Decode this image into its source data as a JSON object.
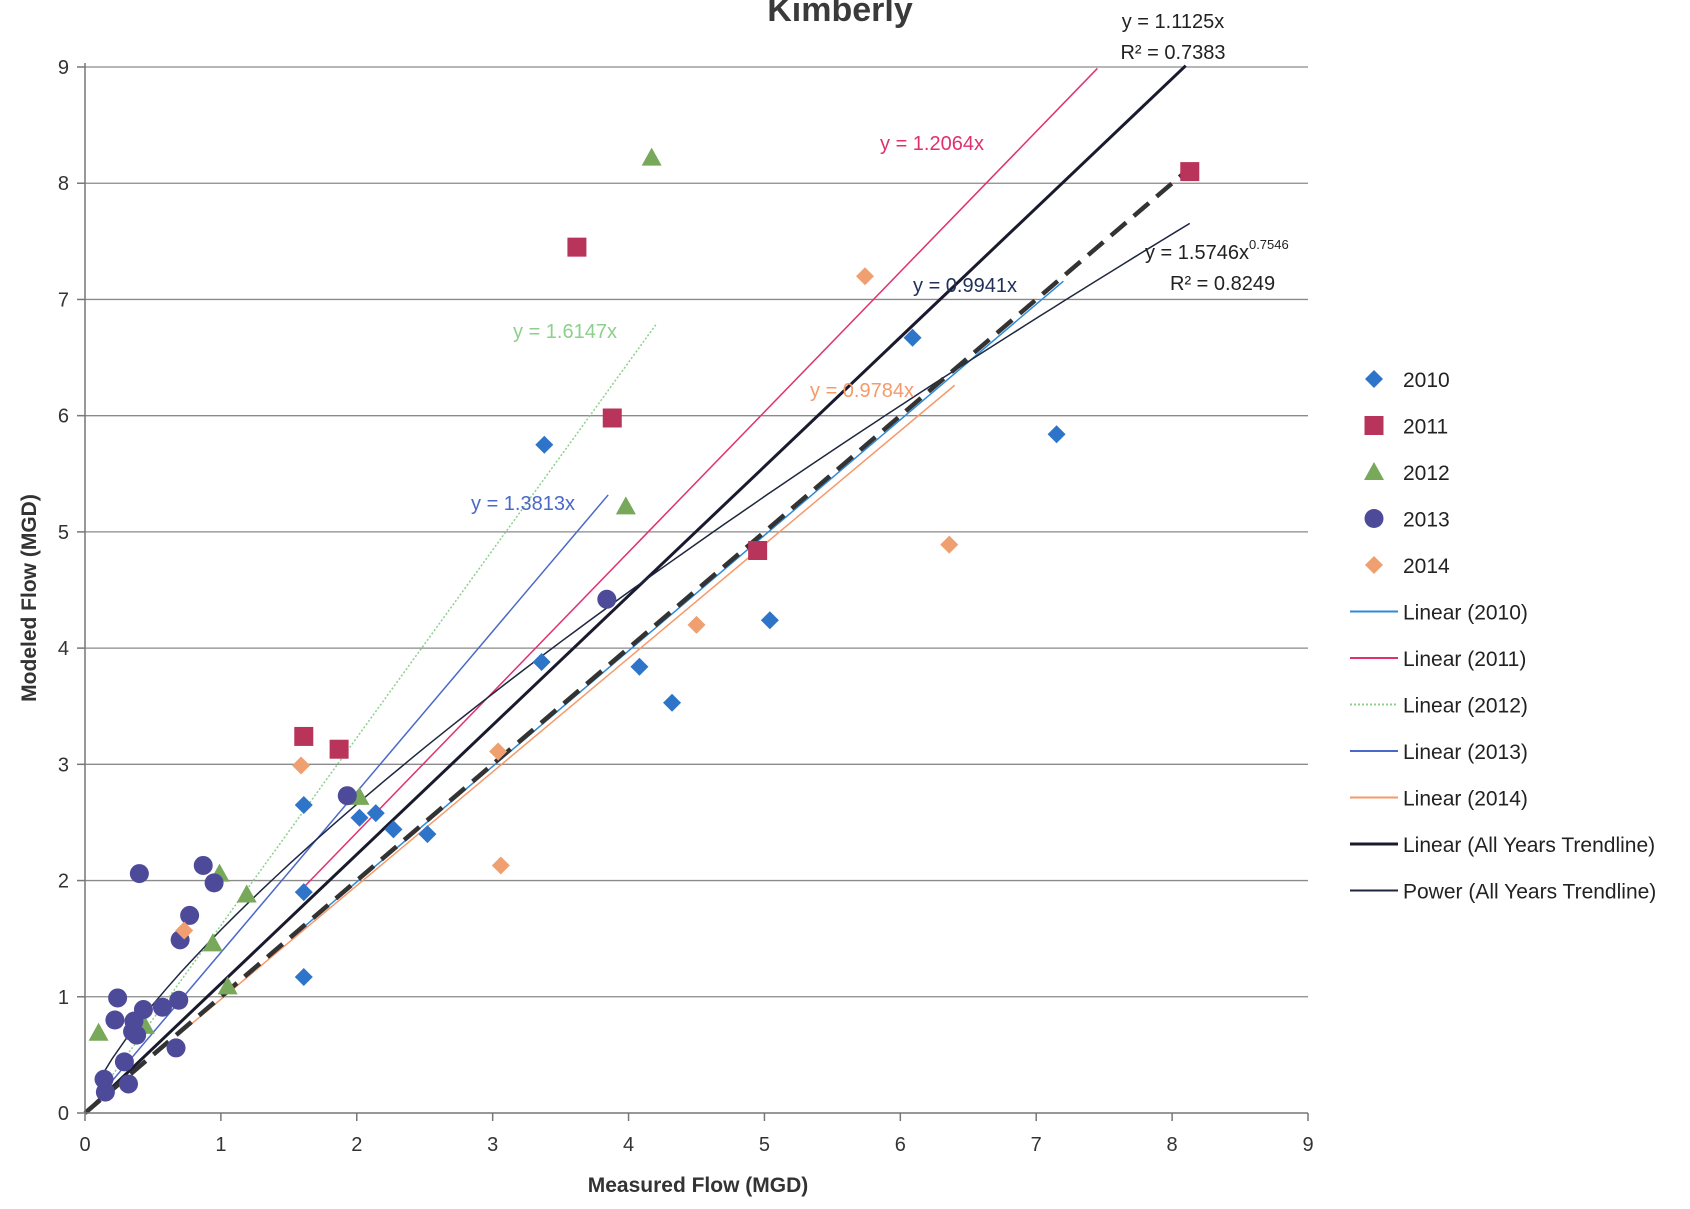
{
  "chart_data": {
    "type": "scatter",
    "title": "Kimberly",
    "xlabel": "Measured Flow (MGD)",
    "ylabel": "Modeled Flow (MGD)",
    "xlim": [
      0,
      9
    ],
    "ylim": [
      0,
      9
    ],
    "xticks": [
      "0",
      "1",
      "2",
      "3",
      "4",
      "5",
      "6",
      "7",
      "8",
      "9"
    ],
    "yticks": [
      "0",
      "1",
      "2",
      "3",
      "4",
      "5",
      "6",
      "7",
      "8",
      "9"
    ],
    "grid": "horizontal",
    "legend_position": "right",
    "series": [
      {
        "name": "2010",
        "marker": "diamond",
        "color": "#2e75c9",
        "points": [
          [
            3.38,
            5.75
          ],
          [
            3.36,
            3.88
          ],
          [
            4.08,
            3.84
          ],
          [
            4.32,
            3.53
          ],
          [
            5.04,
            4.24
          ],
          [
            6.09,
            6.67
          ],
          [
            7.15,
            5.84
          ],
          [
            1.61,
            2.65
          ],
          [
            1.61,
            1.9
          ],
          [
            2.02,
            2.54
          ],
          [
            2.27,
            2.44
          ],
          [
            2.52,
            2.4
          ],
          [
            1.61,
            1.17
          ],
          [
            2.14,
            2.58
          ]
        ]
      },
      {
        "name": "2011",
        "marker": "square",
        "color": "#b8345a",
        "points": [
          [
            3.62,
            7.45
          ],
          [
            3.88,
            5.98
          ],
          [
            1.61,
            3.24
          ],
          [
            1.87,
            3.13
          ],
          [
            4.95,
            4.84
          ],
          [
            8.13,
            8.1
          ]
        ]
      },
      {
        "name": "2012",
        "marker": "triangle",
        "color": "#78a85a",
        "points": [
          [
            4.17,
            8.22
          ],
          [
            3.98,
            5.22
          ],
          [
            0.1,
            0.69
          ],
          [
            0.99,
            2.06
          ],
          [
            1.19,
            1.88
          ],
          [
            0.94,
            1.46
          ],
          [
            2.02,
            2.72
          ],
          [
            1.05,
            1.09
          ],
          [
            0.44,
            0.75
          ]
        ]
      },
      {
        "name": "2013",
        "marker": "circle",
        "color": "#4e4a9a",
        "points": [
          [
            0.14,
            0.29
          ],
          [
            0.15,
            0.18
          ],
          [
            0.22,
            0.8
          ],
          [
            0.24,
            0.99
          ],
          [
            0.29,
            0.44
          ],
          [
            0.32,
            0.25
          ],
          [
            0.36,
            0.79
          ],
          [
            0.38,
            0.67
          ],
          [
            0.4,
            2.06
          ],
          [
            0.43,
            0.89
          ],
          [
            0.57,
            0.91
          ],
          [
            0.67,
            0.56
          ],
          [
            0.69,
            0.97
          ],
          [
            0.7,
            1.49
          ],
          [
            0.77,
            1.7
          ],
          [
            0.87,
            2.13
          ],
          [
            0.95,
            1.98
          ],
          [
            1.93,
            2.73
          ],
          [
            3.84,
            4.42
          ],
          [
            0.35,
            0.7
          ]
        ]
      },
      {
        "name": "2014",
        "marker": "diamond",
        "color": "#f0a070",
        "points": [
          [
            5.74,
            7.2
          ],
          [
            6.36,
            4.89
          ],
          [
            4.5,
            4.2
          ],
          [
            3.04,
            3.11
          ],
          [
            3.06,
            2.13
          ],
          [
            1.59,
            2.99
          ],
          [
            0.73,
            1.57
          ]
        ]
      }
    ],
    "trendlines": [
      {
        "name": "Linear (2010)",
        "kind": "linear",
        "slope": 0.9941,
        "x_range": [
          1.6,
          7.2
        ],
        "color": "#2e8ad6",
        "equation": "y = 0.9941x",
        "equation_color": "#1f2f5a"
      },
      {
        "name": "Linear (2011)",
        "kind": "linear",
        "slope": 1.2064,
        "x_range": [
          1.6,
          7.45
        ],
        "color": "#e03070",
        "equation": "y = 1.2064x",
        "equation_color": "#e03070"
      },
      {
        "name": "Linear (2012)",
        "kind": "linear",
        "slope": 1.6147,
        "x_range": [
          0.1,
          4.2
        ],
        "color": "#8cd08c",
        "dash": "2,2",
        "equation": "y = 1.6147x",
        "equation_color": "#8cd08c"
      },
      {
        "name": "Linear (2013)",
        "kind": "linear",
        "slope": 1.3813,
        "x_range": [
          0.14,
          3.85
        ],
        "color": "#4a68c8",
        "equation": "y = 1.3813x",
        "equation_color": "#4a68c8"
      },
      {
        "name": "Linear (2014)",
        "kind": "linear",
        "slope": 0.9784,
        "x_range": [
          0.7,
          6.4
        ],
        "color": "#f59a6a",
        "equation": "y = 0.9784x",
        "equation_color": "#f59a6a"
      },
      {
        "name": "Linear (All Years Trendline)",
        "kind": "linear",
        "slope": 1.1125,
        "x_range": [
          0,
          8.1
        ],
        "color": "#1a1a2e",
        "width": 3,
        "equation": "y = 1.1125x",
        "r2": "R² = 0.7383",
        "equation_color": "#222"
      },
      {
        "name": "Power (All Years Trendline)",
        "kind": "power",
        "coef": 1.5746,
        "exponent": 0.7546,
        "x_range": [
          0.1,
          8.13
        ],
        "color": "#1f2740",
        "equation": "y = 1.5746x",
        "exponent_label": "0.7546",
        "r2": "R² = 0.8249",
        "equation_color": "#222"
      }
    ],
    "reference_line": {
      "kind": "one-to-one",
      "slope": 1,
      "x_range": [
        0,
        8.2
      ],
      "style": "dashed",
      "color": "#333"
    }
  }
}
